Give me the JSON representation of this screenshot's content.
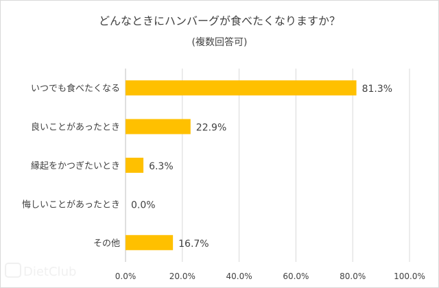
{
  "chart_data": {
    "type": "bar",
    "orientation": "horizontal",
    "title": "どんなときにハンバーグが食べたくなりますか？",
    "subtitle": "(複数回答可)",
    "categories": [
      "いつでも食べたくなる",
      "良いことがあったとき",
      "縁起をかつぎたいとき",
      "悔しいことがあったとき",
      "その他"
    ],
    "values": [
      81.3,
      22.9,
      6.3,
      0.0,
      16.7
    ],
    "value_labels": [
      "81.3%",
      "22.9%",
      "6.3%",
      "0.0%",
      "16.7%"
    ],
    "xlim": [
      0,
      100
    ],
    "xticks": [
      0,
      20,
      40,
      60,
      80,
      100
    ],
    "xtick_labels": [
      "0.0%",
      "20.0%",
      "40.0%",
      "60.0%",
      "80.0%",
      "100.0%"
    ],
    "grid": "vertical",
    "bar_color": "#FFC000",
    "xlabel": "",
    "ylabel": ""
  },
  "watermark": "DietClub"
}
